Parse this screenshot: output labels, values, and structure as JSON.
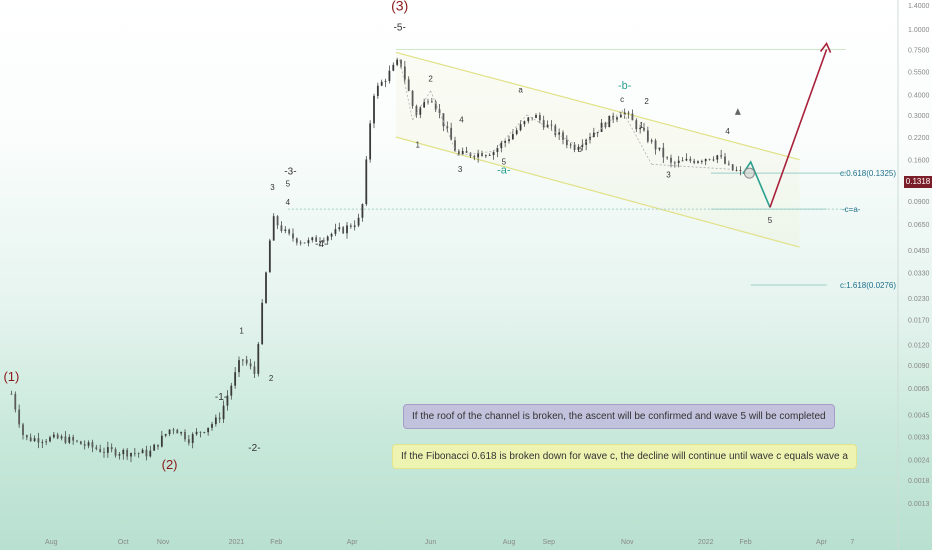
{
  "chart_data": {
    "type": "candlestick",
    "y_scale": "log",
    "y_ticks": [
      "1.4000",
      "1.0000",
      "0.7500",
      "0.5500",
      "0.4000",
      "0.3000",
      "0.2200",
      "0.1600",
      "0.1200",
      "0.0900",
      "0.0650",
      "0.0450",
      "0.0330",
      "0.0230",
      "0.0170",
      "0.0120",
      "0.0090",
      "0.0065",
      "0.0045",
      "0.0033",
      "0.0024",
      "0.0018",
      "0.0013"
    ],
    "x_ticks": [
      "Aug",
      "Oct",
      "Nov",
      "2021",
      "Feb",
      "Apr",
      "Jun",
      "Aug",
      "Sep",
      "Nov",
      "2022",
      "Feb",
      "Apr",
      "7"
    ],
    "last_price": "0.1318",
    "price_history": [
      {
        "date": "2020-07-10",
        "close": 0.006
      },
      {
        "date": "2020-07-20",
        "close": 0.0032
      },
      {
        "date": "2020-08-20",
        "close": 0.0032
      },
      {
        "date": "2020-09-20",
        "close": 0.0027
      },
      {
        "date": "2020-10-25",
        "close": 0.0026
      },
      {
        "date": "2020-11-12",
        "close": 0.0038
      },
      {
        "date": "2020-11-25",
        "close": 0.0032
      },
      {
        "date": "2020-12-18",
        "close": 0.0042
      },
      {
        "date": "2021-01-05",
        "close": 0.01
      },
      {
        "date": "2021-01-15",
        "close": 0.008
      },
      {
        "date": "2021-01-29",
        "close": 0.07
      },
      {
        "date": "2021-02-10",
        "close": 0.055
      },
      {
        "date": "2021-02-25",
        "close": 0.05
      },
      {
        "date": "2021-03-25",
        "close": 0.06
      },
      {
        "date": "2021-04-08",
        "close": 0.07
      },
      {
        "date": "2021-04-17",
        "close": 0.4
      },
      {
        "date": "2021-05-08",
        "close": 0.65
      },
      {
        "date": "2021-05-20",
        "close": 0.3
      },
      {
        "date": "2021-06-01",
        "close": 0.4
      },
      {
        "date": "2021-06-22",
        "close": 0.17
      },
      {
        "date": "2021-07-20",
        "close": 0.18
      },
      {
        "date": "2021-08-20",
        "close": 0.3
      },
      {
        "date": "2021-09-20",
        "close": 0.19
      },
      {
        "date": "2021-10-28",
        "close": 0.32
      },
      {
        "date": "2021-12-05",
        "close": 0.15
      },
      {
        "date": "2022-01-10",
        "close": 0.17
      },
      {
        "date": "2022-01-20",
        "close": 0.14
      },
      {
        "date": "2022-01-30",
        "close": 0.1318
      }
    ],
    "fib_levels": [
      {
        "label": "c:0.618(0.1325)",
        "value": 0.1325
      },
      {
        "label": "-c=a-",
        "value": 0.08
      },
      {
        "label": "c:1.618(0.0276)",
        "value": 0.0276
      }
    ],
    "wave_labels": [
      "(1)",
      "(2)",
      "(3)",
      "-1-",
      "-2-",
      "-3-",
      "-4-",
      "-5-",
      "1",
      "2",
      "3",
      "4",
      "5",
      "-a-",
      "-b-",
      "a",
      "b",
      "c"
    ],
    "annotations": [
      "If the roof of the channel is broken, the ascent will be confirmed and wave 5 will be completed",
      "If the Fibonacci 0.618 is broken down for wave c, the decline will continue until wave c equals wave a"
    ],
    "colors": {
      "up": "#26a69a",
      "down": "#ef5350",
      "candle": "#333333",
      "channel": "#e0e080",
      "wave_major": "#8b1a1a",
      "wave_minor": "#2a9d8f",
      "projection_up": "#a8203a",
      "projection_down": "#2aa08f"
    }
  }
}
